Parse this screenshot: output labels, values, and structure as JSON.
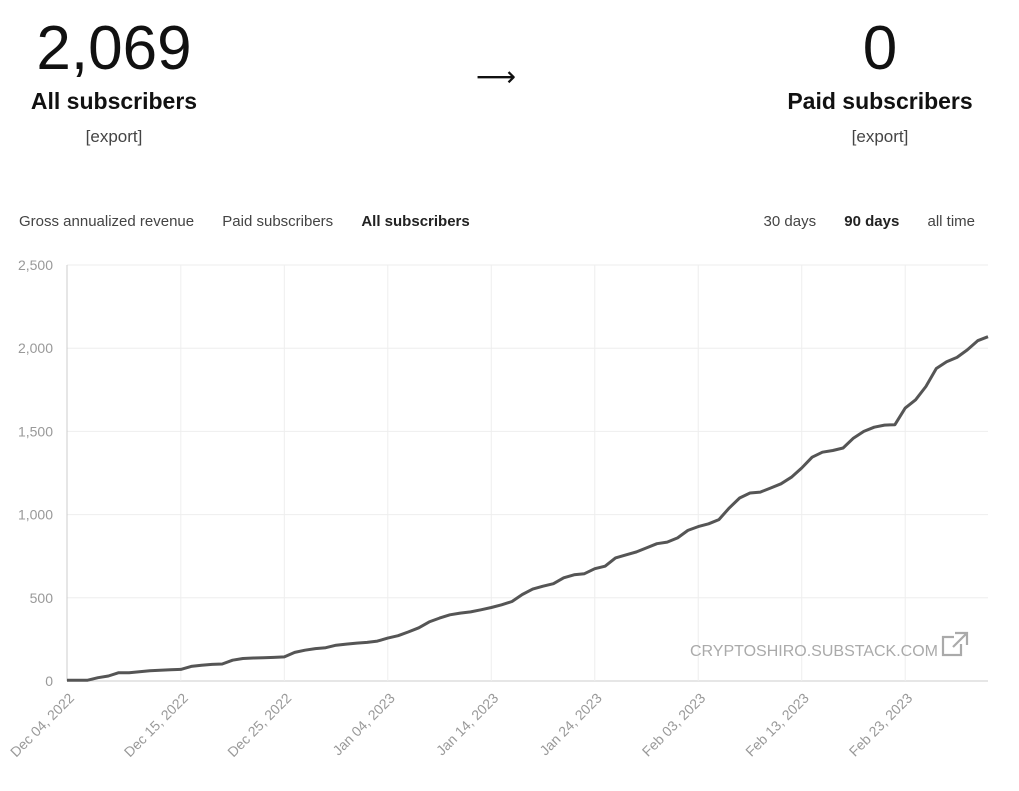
{
  "stats": {
    "all": {
      "value": "2,069",
      "label": "All subscribers",
      "export": "[export]"
    },
    "arrow": "⟶",
    "paid": {
      "value": "0",
      "label": "Paid subscribers",
      "export": "[export]"
    }
  },
  "metric_tabs": [
    {
      "label": "Gross annualized revenue",
      "active": false
    },
    {
      "label": "Paid subscribers",
      "active": false
    },
    {
      "label": "All subscribers",
      "active": true
    }
  ],
  "range_tabs": [
    {
      "label": "30 days",
      "active": false
    },
    {
      "label": "90 days",
      "active": true
    },
    {
      "label": "all time",
      "active": false
    }
  ],
  "watermark": "CRYPTOSHIRO.SUBSTACK.COM",
  "icons": {
    "watermark": "external-link-icon"
  },
  "colors": {
    "line": "#555555",
    "grid": "#eeeeee",
    "axis": "#cccccc",
    "tick": "#999999"
  },
  "chart_data": {
    "type": "line",
    "title": "",
    "xlabel": "",
    "ylabel": "",
    "x_start": "2022-12-04",
    "x_end": "2023-03-03",
    "x_ticks": [
      "Dec 04, 2022",
      "Dec 15, 2022",
      "Dec 25, 2022",
      "Jan 04, 2023",
      "Jan 14, 2023",
      "Jan 24, 2023",
      "Feb 03, 2023",
      "Feb 13, 2023",
      "Feb 23, 2023"
    ],
    "y_ticks": [
      "0",
      "500",
      "1,000",
      "1,500",
      "2,000",
      "2,500"
    ],
    "ylim": [
      0,
      2500
    ],
    "grid": true,
    "series": [
      {
        "values": [
          [
            "2022-12-04",
            5
          ],
          [
            "2022-12-05",
            5
          ],
          [
            "2022-12-06",
            5
          ],
          [
            "2022-12-07",
            20
          ],
          [
            "2022-12-08",
            30
          ],
          [
            "2022-12-09",
            50
          ],
          [
            "2022-12-10",
            50
          ],
          [
            "2022-12-11",
            55
          ],
          [
            "2022-12-12",
            62
          ],
          [
            "2022-12-13",
            65
          ],
          [
            "2022-12-14",
            68
          ],
          [
            "2022-12-15",
            70
          ],
          [
            "2022-12-16",
            88
          ],
          [
            "2022-12-17",
            95
          ],
          [
            "2022-12-18",
            100
          ],
          [
            "2022-12-19",
            102
          ],
          [
            "2022-12-20",
            125
          ],
          [
            "2022-12-21",
            135
          ],
          [
            "2022-12-22",
            138
          ],
          [
            "2022-12-23",
            140
          ],
          [
            "2022-12-24",
            142
          ],
          [
            "2022-12-25",
            145
          ],
          [
            "2022-12-26",
            172
          ],
          [
            "2022-12-27",
            185
          ],
          [
            "2022-12-28",
            195
          ],
          [
            "2022-12-29",
            200
          ],
          [
            "2022-12-30",
            215
          ],
          [
            "2022-12-31",
            222
          ],
          [
            "2023-01-01",
            228
          ],
          [
            "2023-01-02",
            232
          ],
          [
            "2023-01-03",
            240
          ],
          [
            "2023-01-04",
            258
          ],
          [
            "2023-01-05",
            272
          ],
          [
            "2023-01-06",
            295
          ],
          [
            "2023-01-07",
            320
          ],
          [
            "2023-01-08",
            355
          ],
          [
            "2023-01-09",
            378
          ],
          [
            "2023-01-10",
            398
          ],
          [
            "2023-01-11",
            408
          ],
          [
            "2023-01-12",
            415
          ],
          [
            "2023-01-13",
            428
          ],
          [
            "2023-01-14",
            442
          ],
          [
            "2023-01-15",
            458
          ],
          [
            "2023-01-16",
            478
          ],
          [
            "2023-01-17",
            520
          ],
          [
            "2023-01-18",
            552
          ],
          [
            "2023-01-19",
            570
          ],
          [
            "2023-01-20",
            585
          ],
          [
            "2023-01-21",
            620
          ],
          [
            "2023-01-22",
            638
          ],
          [
            "2023-01-23",
            645
          ],
          [
            "2023-01-24",
            675
          ],
          [
            "2023-01-25",
            690
          ],
          [
            "2023-01-26",
            740
          ],
          [
            "2023-01-27",
            758
          ],
          [
            "2023-01-28",
            775
          ],
          [
            "2023-01-29",
            800
          ],
          [
            "2023-01-30",
            825
          ],
          [
            "2023-01-31",
            835
          ],
          [
            "2023-02-01",
            860
          ],
          [
            "2023-02-02",
            905
          ],
          [
            "2023-02-03",
            928
          ],
          [
            "2023-02-04",
            945
          ],
          [
            "2023-02-05",
            970
          ],
          [
            "2023-02-06",
            1040
          ],
          [
            "2023-02-07",
            1100
          ],
          [
            "2023-02-08",
            1130
          ],
          [
            "2023-02-09",
            1135
          ],
          [
            "2023-02-10",
            1160
          ],
          [
            "2023-02-11",
            1185
          ],
          [
            "2023-02-12",
            1225
          ],
          [
            "2023-02-13",
            1280
          ],
          [
            "2023-02-14",
            1345
          ],
          [
            "2023-02-15",
            1375
          ],
          [
            "2023-02-16",
            1385
          ],
          [
            "2023-02-17",
            1400
          ],
          [
            "2023-02-18",
            1460
          ],
          [
            "2023-02-19",
            1500
          ],
          [
            "2023-02-20",
            1525
          ],
          [
            "2023-02-21",
            1538
          ],
          [
            "2023-02-22",
            1540
          ],
          [
            "2023-02-23",
            1640
          ],
          [
            "2023-02-24",
            1690
          ],
          [
            "2023-02-25",
            1770
          ],
          [
            "2023-02-26",
            1878
          ],
          [
            "2023-02-27",
            1918
          ],
          [
            "2023-02-28",
            1945
          ],
          [
            "2023-03-01",
            1990
          ],
          [
            "2023-03-02",
            2045
          ],
          [
            "2023-03-03",
            2069
          ]
        ]
      }
    ]
  }
}
